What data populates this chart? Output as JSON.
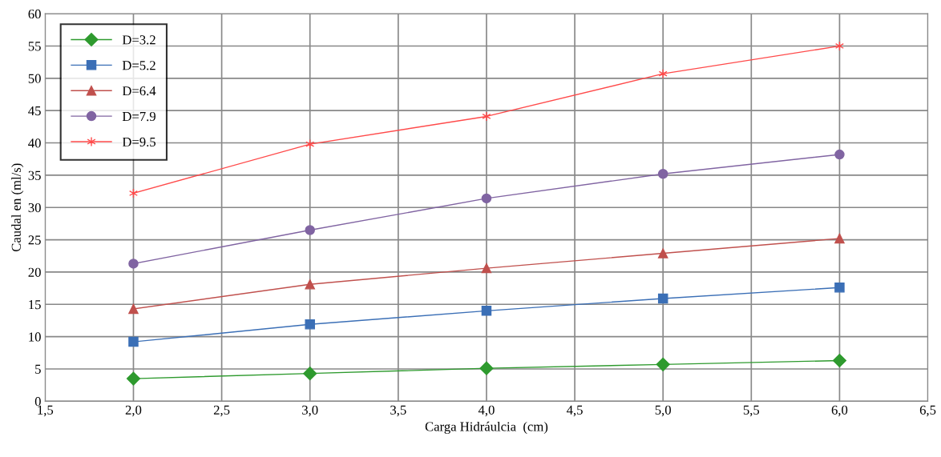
{
  "chart_data": {
    "type": "line",
    "xlabel": "Carga Hidráulcia  (cm)",
    "ylabel": "Caudal en (ml/s)",
    "x": [
      2.0,
      3.0,
      4.0,
      5.0,
      6.0
    ],
    "series": [
      {
        "name": "D=3.2",
        "color": "#2e9a2e",
        "marker": "diamond",
        "values": [
          3.5,
          4.3,
          5.1,
          5.7,
          6.3
        ]
      },
      {
        "name": "D=5.2",
        "color": "#3b6fb6",
        "marker": "square",
        "values": [
          9.2,
          11.9,
          14.0,
          15.9,
          17.6
        ]
      },
      {
        "name": "D=6.4",
        "color": "#c0504d",
        "marker": "triangle",
        "values": [
          14.3,
          18.1,
          20.6,
          22.9,
          25.2
        ]
      },
      {
        "name": "D=7.9",
        "color": "#8064a2",
        "marker": "circle",
        "values": [
          21.3,
          26.5,
          31.4,
          35.2,
          38.2
        ]
      },
      {
        "name": "D=9.5",
        "color": "#ff4a4a",
        "marker": "cross",
        "values": [
          32.2,
          39.8,
          44.1,
          50.7,
          55.0
        ]
      }
    ],
    "xlim": [
      1.5,
      6.5
    ],
    "xticks": [
      {
        "value": 1.5,
        "label": "1,5"
      },
      {
        "value": 2.0,
        "label": "2,0"
      },
      {
        "value": 2.5,
        "label": "2,5"
      },
      {
        "value": 3.0,
        "label": "3,0"
      },
      {
        "value": 3.5,
        "label": "3,5"
      },
      {
        "value": 4.0,
        "label": "4,0"
      },
      {
        "value": 4.5,
        "label": "4,5"
      },
      {
        "value": 5.0,
        "label": "5,0"
      },
      {
        "value": 5.5,
        "label": "5,5"
      },
      {
        "value": 6.0,
        "label": "6,0"
      },
      {
        "value": 6.5,
        "label": "6,5"
      }
    ],
    "ylim": [
      0,
      60
    ],
    "yticks": [
      0,
      5,
      10,
      15,
      20,
      25,
      30,
      35,
      40,
      45,
      50,
      55,
      60
    ],
    "grid": true,
    "legend": "top left"
  }
}
